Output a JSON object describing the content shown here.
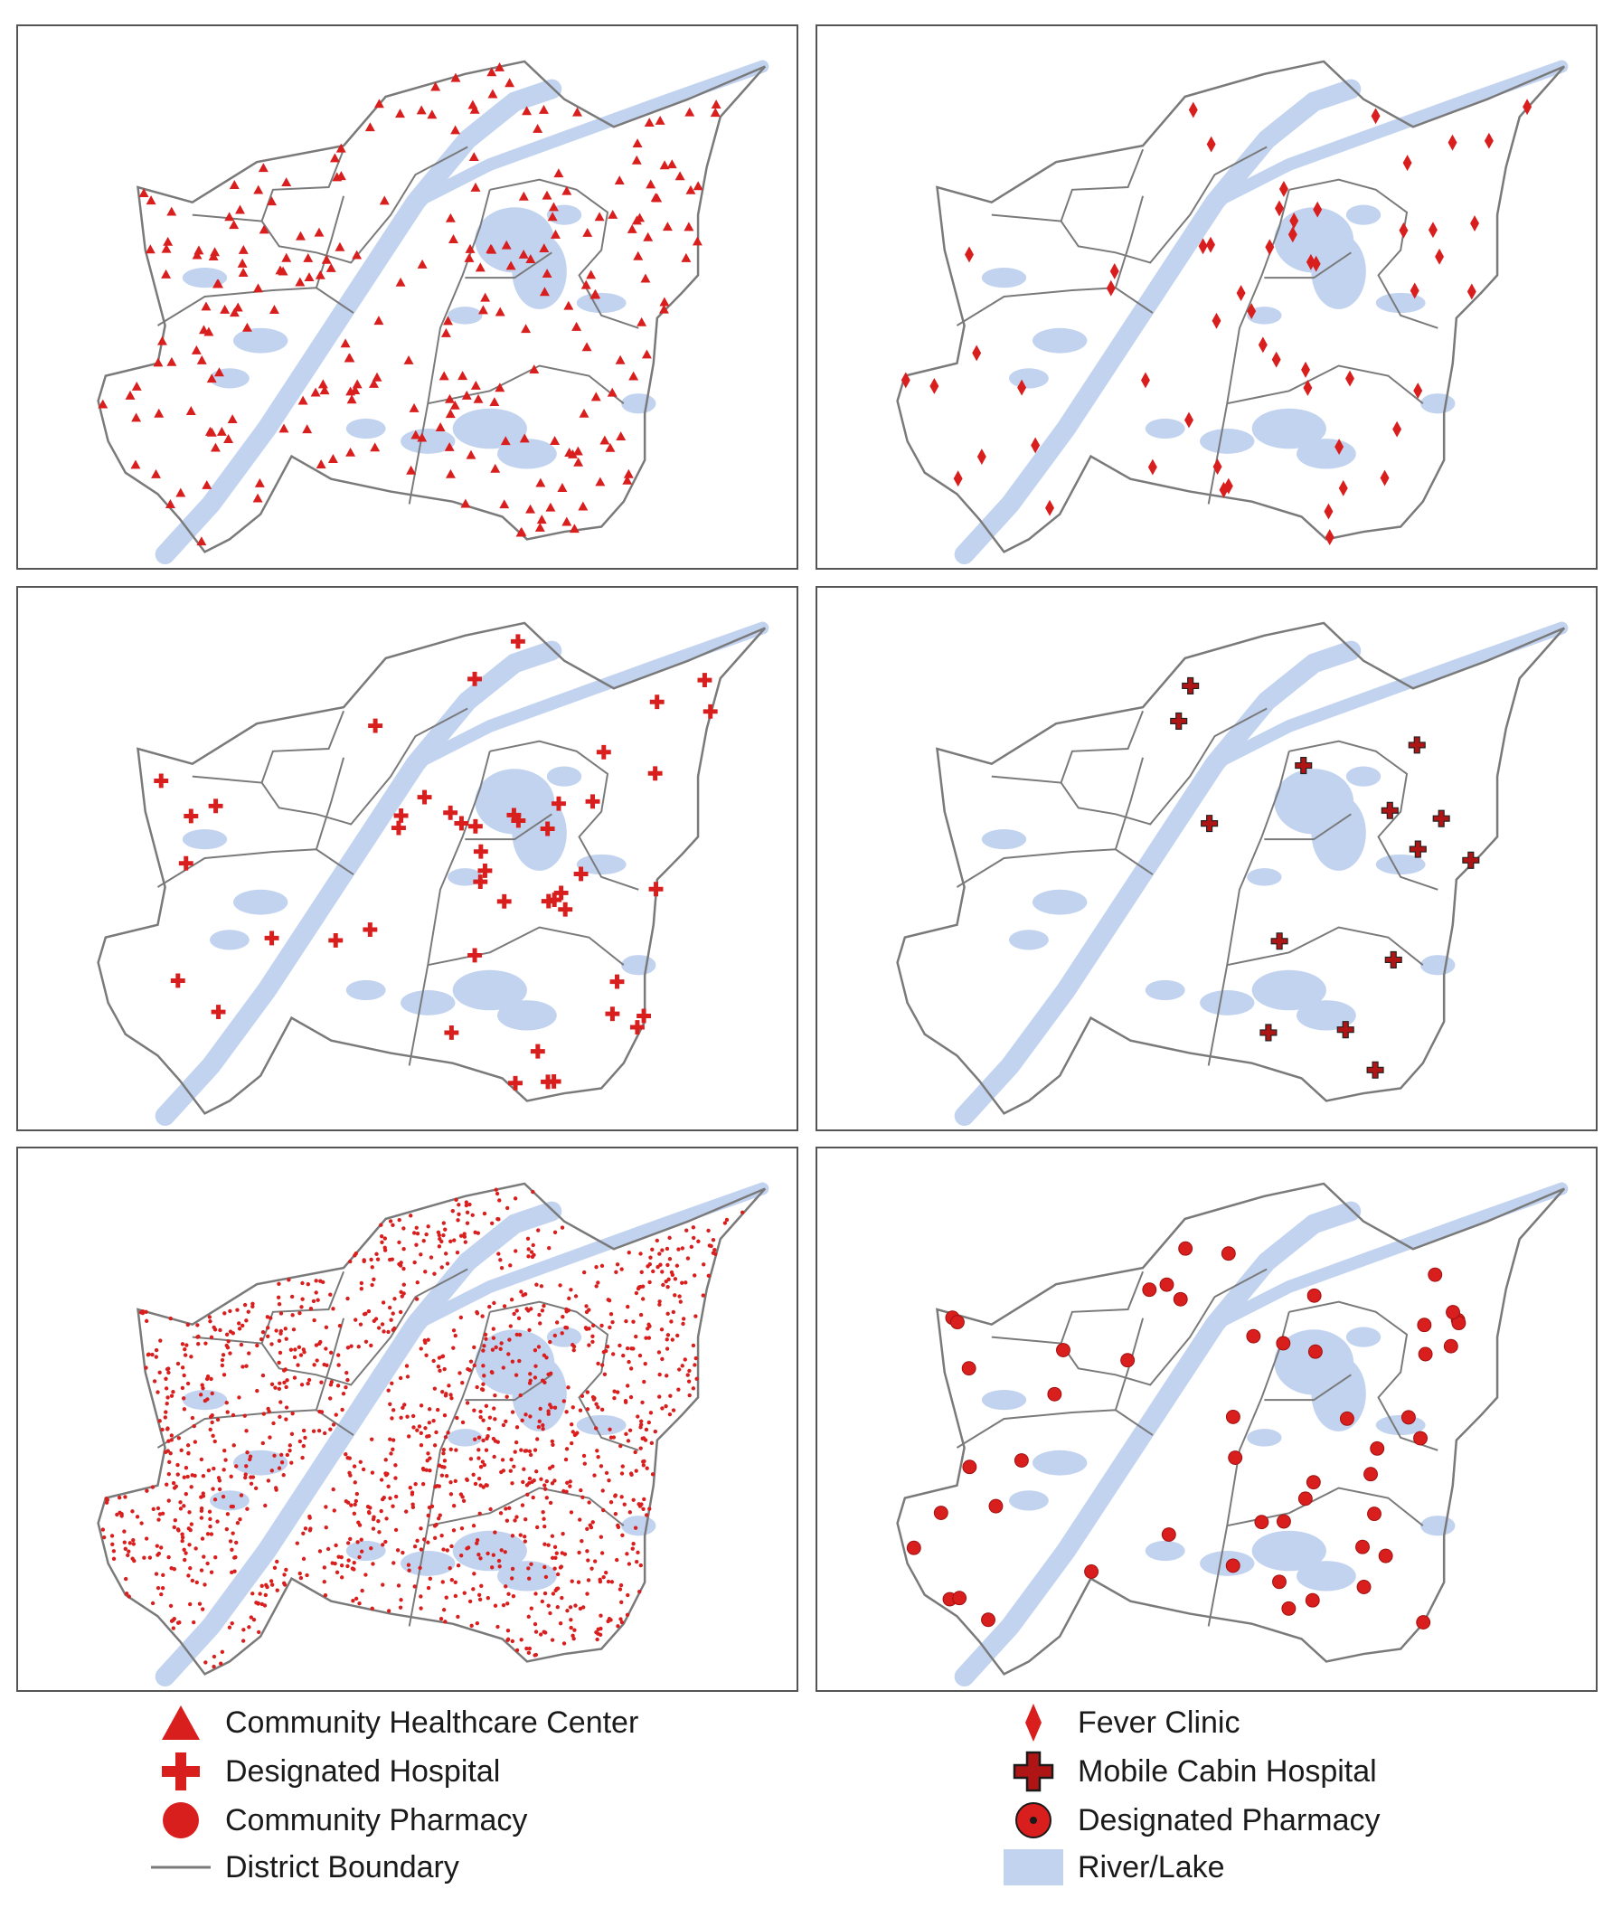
{
  "colors": {
    "symbol": "#d91e1e",
    "symbol_dark": "#b01515",
    "water": "#c2d3f0",
    "boundary": "#7a7a7a",
    "frame": "#555555"
  },
  "panels": [
    {
      "id": "community-healthcare-center",
      "symbol": "triangle",
      "count": 240
    },
    {
      "id": "fever-clinic",
      "symbol": "diamond",
      "count": 55
    },
    {
      "id": "designated-hospital",
      "symbol": "cross",
      "count": 48
    },
    {
      "id": "mobile-cabin-hospital",
      "symbol": "cross-outline",
      "count": 14
    },
    {
      "id": "community-pharmacy",
      "symbol": "dot",
      "count": 1400
    },
    {
      "id": "designated-pharmacy",
      "symbol": "circle-dot",
      "count": 52
    }
  ],
  "legend": {
    "items": [
      {
        "label": "Community Healthcare Center",
        "symbol": "triangle-icon"
      },
      {
        "label": "Designated Hospital",
        "symbol": "cross-icon"
      },
      {
        "label": "Community Pharmacy",
        "symbol": "dot-icon"
      },
      {
        "label": "District Boundary",
        "symbol": "line-icon"
      },
      {
        "label": "Fever Clinic",
        "symbol": "diamond-icon"
      },
      {
        "label": "Mobile Cabin Hospital",
        "symbol": "cross-outline-icon"
      },
      {
        "label": "Designated Pharmacy",
        "symbol": "circle-dot-icon"
      },
      {
        "label": "River/Lake",
        "symbol": "water-swatch-icon"
      }
    ]
  }
}
